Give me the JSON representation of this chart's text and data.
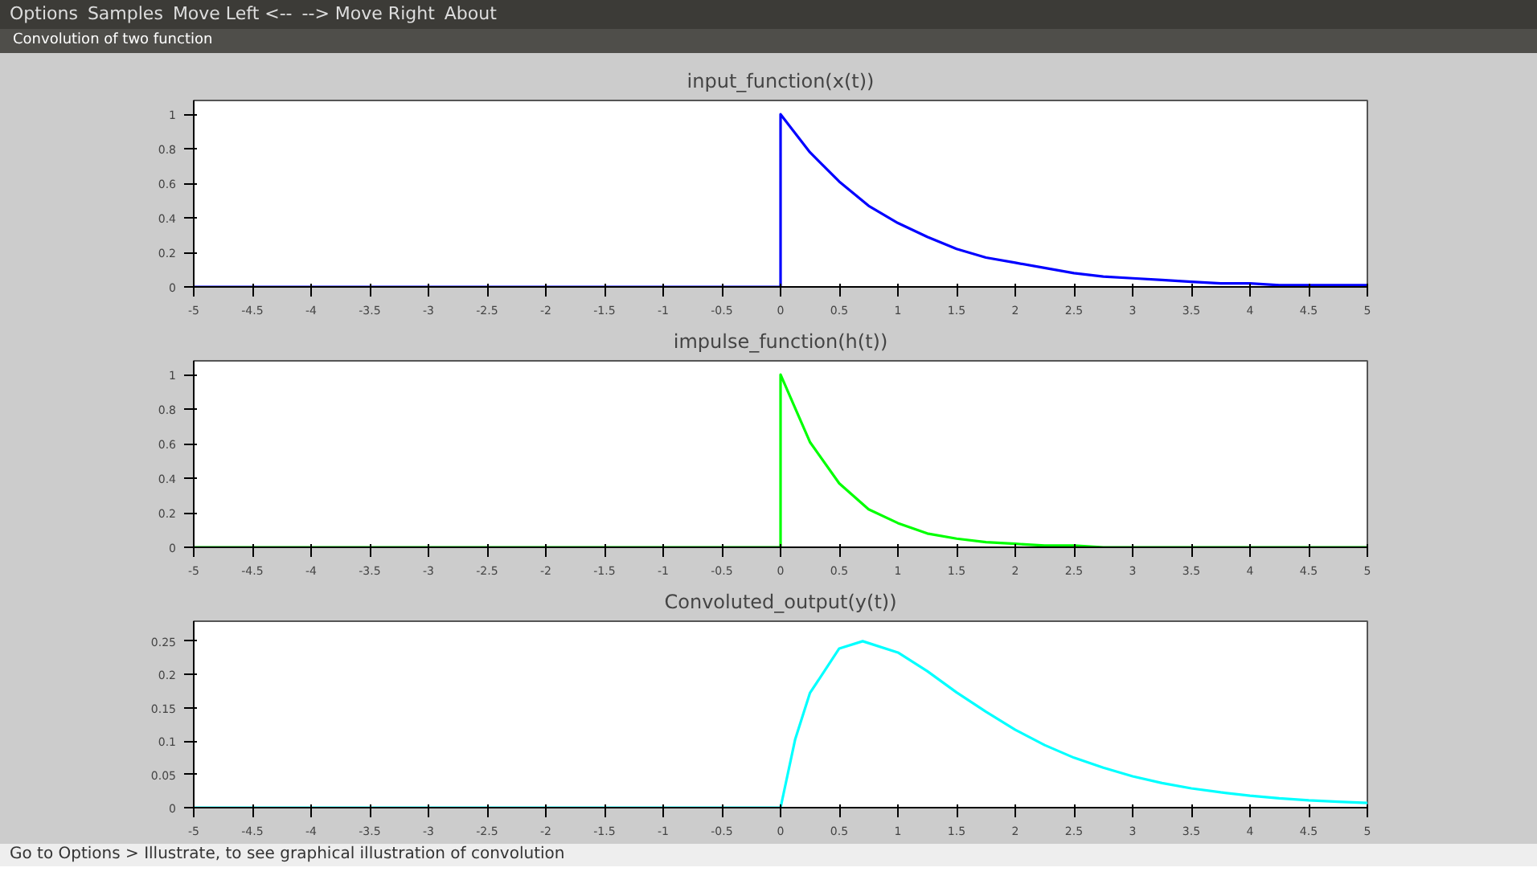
{
  "chart_data": [
    {
      "type": "line",
      "title": "input_function(x(t))",
      "annotations": [
        "Options",
        "Samples",
        "Move Left <--",
        "--> Move Right",
        "About",
        "Convolution of two function"
      ],
      "x": [
        -5,
        0,
        0,
        0,
        0.25,
        0.5,
        0.75,
        1,
        1.25,
        1.5,
        1.75,
        2,
        2.25,
        2.5,
        2.75,
        3,
        3.25,
        3.5,
        3.75,
        4,
        4.25,
        4.5,
        4.75,
        5
      ],
      "series": [
        {
          "color": "#0000ff",
          "values": [
            0,
            0,
            0.5,
            1,
            0.78,
            0.61,
            0.47,
            0.37,
            0.29,
            0.22,
            0.17,
            0.14,
            0.11,
            0.08,
            0.06,
            0.05,
            0.04,
            0.03,
            0.02,
            0.02,
            0.01,
            0.01,
            0.01,
            0.01
          ]
        }
      ],
      "xlim": [
        -5,
        5
      ],
      "xticks": [
        -5,
        -4.5,
        -4,
        -3.5,
        -3,
        -2.5,
        -2,
        -1.5,
        -1,
        -0.5,
        0,
        0.5,
        1,
        1.5,
        2,
        2.5,
        3,
        3.5,
        4,
        4.5,
        5
      ],
      "ylim": [
        0,
        1.08
      ],
      "yticks": [
        0,
        0.2,
        0.4,
        0.6,
        0.8,
        1
      ],
      "grid": false
    },
    {
      "type": "line",
      "title": "impulse_function(h(t))",
      "x": [
        -5,
        0,
        0,
        0,
        0.25,
        0.5,
        0.75,
        1,
        1.25,
        1.5,
        1.75,
        2,
        2.25,
        2.5,
        2.75,
        3,
        3.5,
        4,
        4.5,
        5
      ],
      "series": [
        {
          "color": "#00ff00",
          "values": [
            0,
            0,
            0.5,
            1,
            0.61,
            0.37,
            0.22,
            0.14,
            0.08,
            0.05,
            0.03,
            0.02,
            0.01,
            0.01,
            0,
            0,
            0,
            0,
            0,
            0
          ]
        }
      ],
      "xlim": [
        -5,
        5
      ],
      "xticks": [
        -5,
        -4.5,
        -4,
        -3.5,
        -3,
        -2.5,
        -2,
        -1.5,
        -1,
        -0.5,
        0,
        0.5,
        1,
        1.5,
        2,
        2.5,
        3,
        3.5,
        4,
        4.5,
        5
      ],
      "ylim": [
        0,
        1.08
      ],
      "yticks": [
        0,
        0.2,
        0.4,
        0.6,
        0.8,
        1
      ],
      "grid": false
    },
    {
      "type": "line",
      "title": "Convoluted_output(y(t))",
      "annotations": [
        "Go to Options > Illustrate, to see graphical illustration of convolution"
      ],
      "x": [
        -5,
        0,
        0.125,
        0.25,
        0.5,
        0.7,
        1,
        1.25,
        1.5,
        1.75,
        2,
        2.25,
        2.5,
        2.75,
        3,
        3.25,
        3.5,
        3.75,
        4,
        4.25,
        4.5,
        4.75,
        5
      ],
      "series": [
        {
          "color": "#00ffff",
          "values": [
            0,
            0,
            0.103,
            0.172,
            0.239,
            0.25,
            0.233,
            0.205,
            0.173,
            0.144,
            0.117,
            0.094,
            0.075,
            0.06,
            0.047,
            0.037,
            0.029,
            0.023,
            0.018,
            0.014,
            0.011,
            0.009,
            0.007
          ]
        }
      ],
      "xlim": [
        -5,
        5
      ],
      "xticks": [
        -5,
        -4.5,
        -4,
        -3.5,
        -3,
        -2.5,
        -2,
        -1.5,
        -1,
        -0.5,
        0,
        0.5,
        1,
        1.5,
        2,
        2.5,
        3,
        3.5,
        4,
        4.5,
        5
      ],
      "ylim": [
        0,
        0.28
      ],
      "yticks": [
        0,
        0.05,
        0.1,
        0.15,
        0.2,
        0.25
      ],
      "grid": false
    }
  ]
}
